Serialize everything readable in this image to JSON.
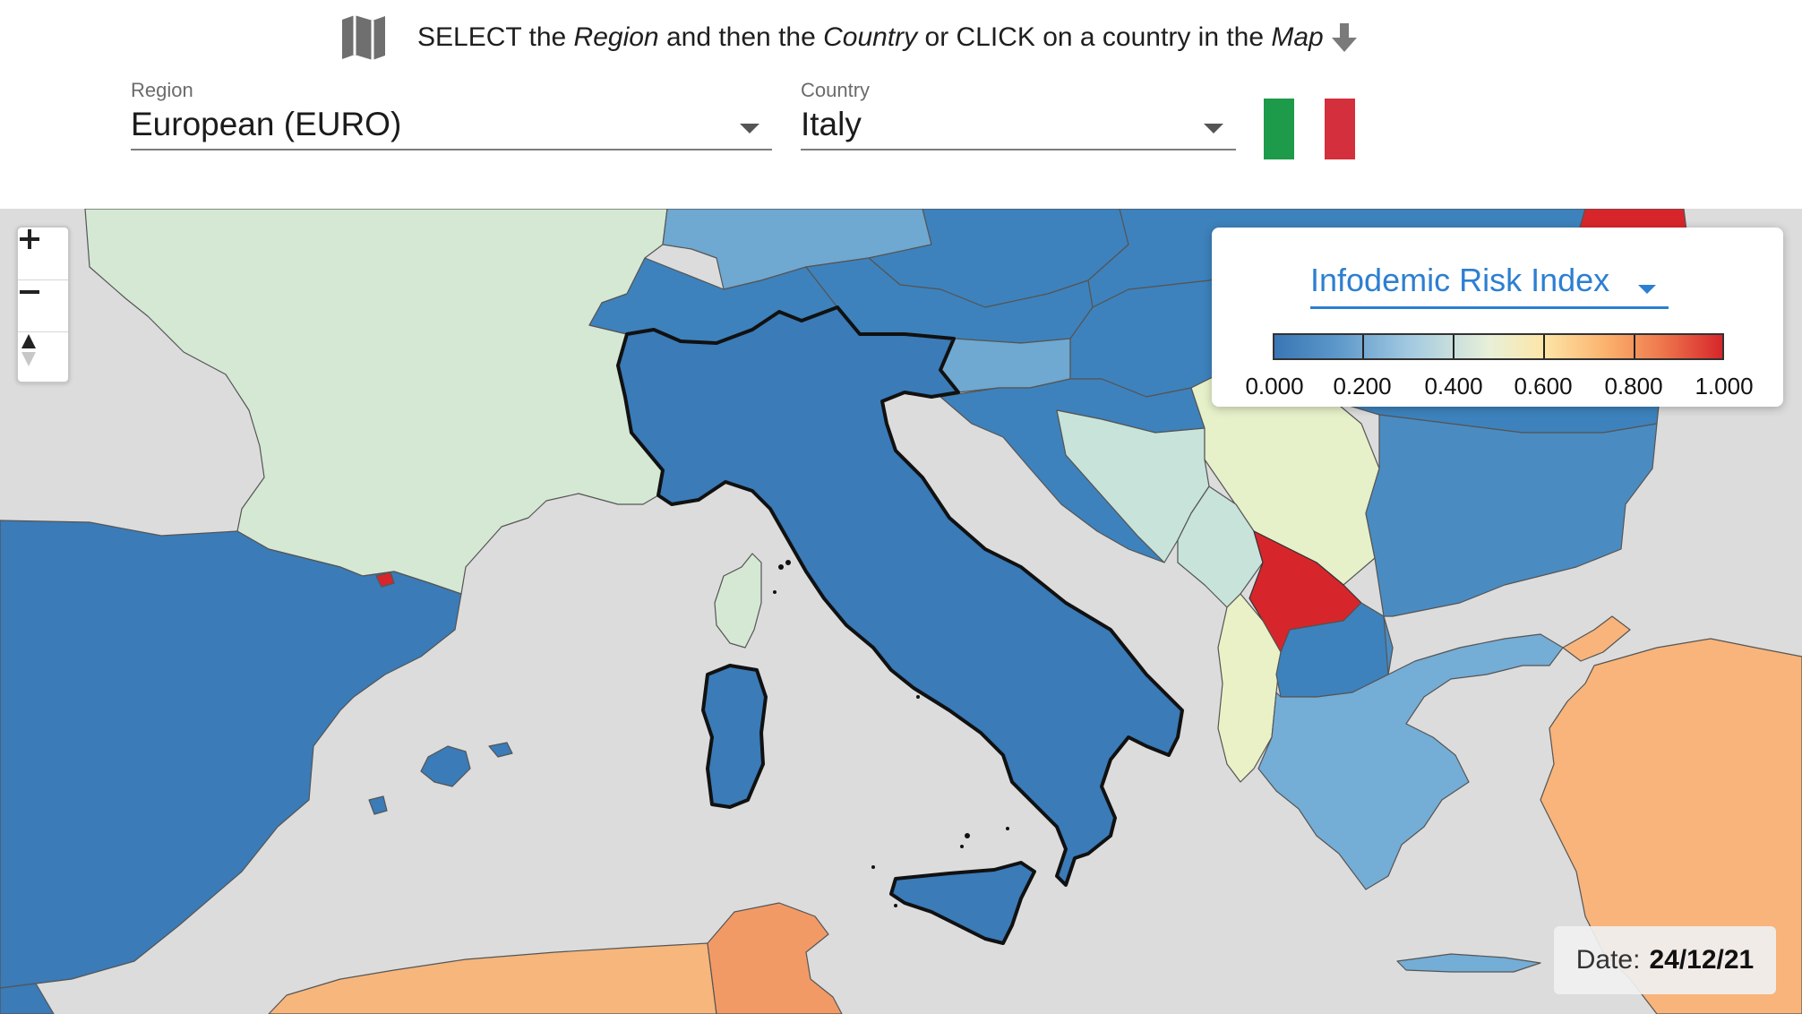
{
  "header": {
    "instruction": {
      "part1": "SELECT the ",
      "region_word": "Region",
      "part2": " and then the ",
      "country_word": "Country",
      "part3": " or CLICK on a country in the ",
      "map_word": "Map",
      "map_icon": "map-icon",
      "arrow_icon": "arrow-down-icon"
    },
    "region_select": {
      "label": "Region",
      "value": "European (EURO)"
    },
    "country_select": {
      "label": "Country",
      "value": "Italy"
    },
    "flag": {
      "country": "Italy",
      "colors": [
        "#1e9a4b",
        "#ffffff",
        "#d32f3c"
      ]
    }
  },
  "map": {
    "zoom_in_icon": "plus-icon",
    "zoom_out_icon": "minus-icon",
    "reset_north_icon": "compass-icon",
    "colors": {
      "sea": "#dcdcdc",
      "italy": "#3a7bb8",
      "france": "#d4e8d4",
      "spain": "#3a7bb8",
      "kosovo": "#d7262b",
      "turkey": "#f8b47a"
    }
  },
  "legend": {
    "metric": "Infodemic Risk Index",
    "scale_colors": [
      "#3976b5",
      "#5c98c9",
      "#a2c9e1",
      "#e8f0d8",
      "#fde6a8",
      "#fbb26e",
      "#ef7a4e",
      "#d7262b"
    ],
    "ticks": [
      "0.000",
      "0.200",
      "0.400",
      "0.600",
      "0.800",
      "1.000"
    ]
  },
  "date": {
    "label": "Date:",
    "value": "24/12/21"
  }
}
